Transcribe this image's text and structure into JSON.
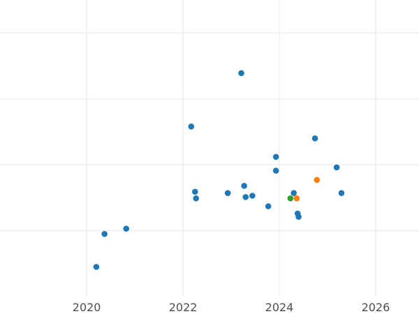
{
  "chart_data": {
    "type": "scatter",
    "title": "",
    "xlabel": "",
    "ylabel": "",
    "grid": true,
    "legend": "none",
    "xlim": [
      2018.2,
      2026.9
    ],
    "ylim": [
      0.0,
      4.5
    ],
    "xticks": [
      2020,
      2022,
      2024,
      2026
    ],
    "xtick_labels": [
      "2020",
      "2022",
      "2024",
      "2026"
    ],
    "ygrid": [
      1,
      2,
      3,
      4
    ],
    "series": [
      {
        "color": "#1f77b4",
        "points": [
          {
            "x": 2020.2,
            "y": 0.45
          },
          {
            "x": 2020.37,
            "y": 0.95
          },
          {
            "x": 2020.82,
            "y": 1.03
          },
          {
            "x": 2022.17,
            "y": 2.58
          },
          {
            "x": 2022.25,
            "y": 1.59
          },
          {
            "x": 2022.27,
            "y": 1.49
          },
          {
            "x": 2022.93,
            "y": 1.57
          },
          {
            "x": 2023.21,
            "y": 3.39
          },
          {
            "x": 2023.27,
            "y": 1.68
          },
          {
            "x": 2023.3,
            "y": 1.51
          },
          {
            "x": 2023.44,
            "y": 1.53
          },
          {
            "x": 2023.77,
            "y": 1.37
          },
          {
            "x": 2023.93,
            "y": 2.12
          },
          {
            "x": 2023.93,
            "y": 1.91
          },
          {
            "x": 2024.3,
            "y": 1.57
          },
          {
            "x": 2024.38,
            "y": 1.26
          },
          {
            "x": 2024.4,
            "y": 1.21
          },
          {
            "x": 2024.74,
            "y": 2.4
          },
          {
            "x": 2025.19,
            "y": 1.96
          },
          {
            "x": 2025.29,
            "y": 1.57
          }
        ]
      },
      {
        "color": "#ff7f0e",
        "points": [
          {
            "x": 2024.78,
            "y": 1.77
          },
          {
            "x": 2024.36,
            "y": 1.49
          }
        ]
      },
      {
        "color": "#2ca02c",
        "points": [
          {
            "x": 2024.23,
            "y": 1.49
          }
        ]
      }
    ]
  }
}
